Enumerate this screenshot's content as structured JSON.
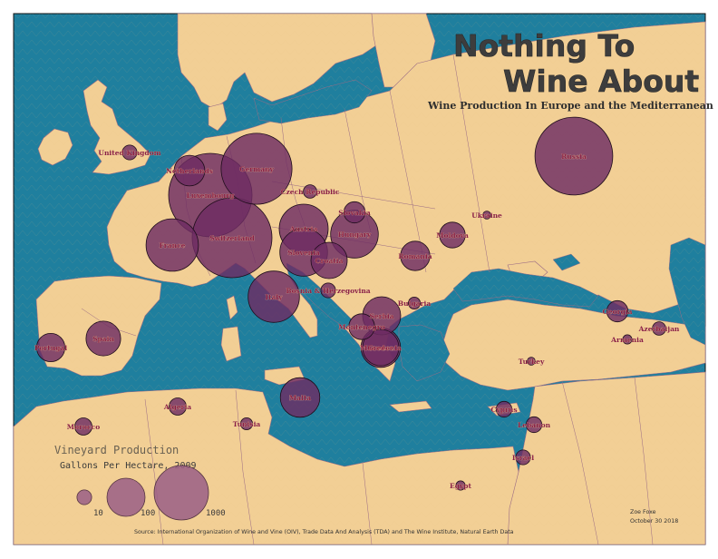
{
  "title_line1": "Nothing To",
  "title_line2": "Wine About",
  "subtitle": "Wine Production In Europe and the Mediterranean",
  "legend": {
    "heading": "Vineyard Production",
    "unit": "Gallons Per Hectare, 2009",
    "sizes": [
      "10",
      "100",
      "1000"
    ]
  },
  "author": "Zoe Foxe",
  "date": "October 30 2018",
  "source": "Source: International Organization of Wine and Vine (OIV), Trade Data And Analysis (TDA) and The Wine Institute, Natural Earth Data",
  "colors": {
    "sea": "#1f7f9e",
    "sea_shallow": "#2b91ae",
    "land": "#f2cf95",
    "bubble": "#6e2c63",
    "label": "#8a1f45"
  },
  "countries": [
    {
      "id": "uk",
      "name": "United Kingdom",
      "value": 10
    },
    {
      "id": "netherlands",
      "name": "Netherlands",
      "value": 60
    },
    {
      "id": "luxembourg",
      "name": "Luxembourg",
      "value": 1100
    },
    {
      "id": "germany",
      "name": "Germany",
      "value": 420
    },
    {
      "id": "czech",
      "name": "Czech Republic",
      "value": 8
    },
    {
      "id": "austria",
      "name": "Austria",
      "value": 180
    },
    {
      "id": "switzerland",
      "name": "Switzerland",
      "value": 550
    },
    {
      "id": "france",
      "name": "France",
      "value": 210
    },
    {
      "id": "slovakia",
      "name": "Slovakia",
      "value": 25
    },
    {
      "id": "hungary",
      "name": "Hungary",
      "value": 170
    },
    {
      "id": "slovenia",
      "name": "Slovenia",
      "value": 170
    },
    {
      "id": "croatia",
      "name": "Croatia",
      "value": 90
    },
    {
      "id": "moldova",
      "name": "Moldova",
      "value": 40
    },
    {
      "id": "romania",
      "name": "Romania",
      "value": 55
    },
    {
      "id": "ukraine",
      "name": "Ukraine",
      "value": 2
    },
    {
      "id": "russia",
      "name": "Russia",
      "value": 520
    },
    {
      "id": "bosnia",
      "name": "Bosnia & Herzegovina",
      "value": 10
    },
    {
      "id": "italy",
      "name": "Italy",
      "value": 200
    },
    {
      "id": "serbia",
      "name": "Serbia",
      "value": 100
    },
    {
      "id": "bulgaria",
      "name": "Bulgaria",
      "value": 6
    },
    {
      "id": "montenegro",
      "name": "Montenegro",
      "value": 40
    },
    {
      "id": "macedonia",
      "name": "Macedonia",
      "value": 110
    },
    {
      "id": "spain",
      "name": "Spain",
      "value": 80
    },
    {
      "id": "portugal",
      "name": "Portugal",
      "value": 50
    },
    {
      "id": "georgia",
      "name": "Georgia",
      "value": 25
    },
    {
      "id": "armenia",
      "name": "Armenia",
      "value": 3
    },
    {
      "id": "azerbaijan",
      "name": "Azerbaijan",
      "value": 8
    },
    {
      "id": "turkey",
      "name": "Turkey",
      "value": 2
    },
    {
      "id": "greece",
      "name": "Greece",
      "value": 90
    },
    {
      "id": "malta",
      "name": "Malta",
      "value": 110
    },
    {
      "id": "algeria",
      "name": "Algeria",
      "value": 15
    },
    {
      "id": "tunisia",
      "name": "Tunisia",
      "value": 6
    },
    {
      "id": "morocco",
      "name": "Morocco",
      "value": 15
    },
    {
      "id": "cyprus",
      "name": "Cyprus",
      "value": 12
    },
    {
      "id": "lebanon",
      "name": "Lebanon",
      "value": 12
    },
    {
      "id": "israel",
      "name": "Israel",
      "value": 10
    },
    {
      "id": "egypt",
      "name": "Egypt",
      "value": 3
    }
  ]
}
